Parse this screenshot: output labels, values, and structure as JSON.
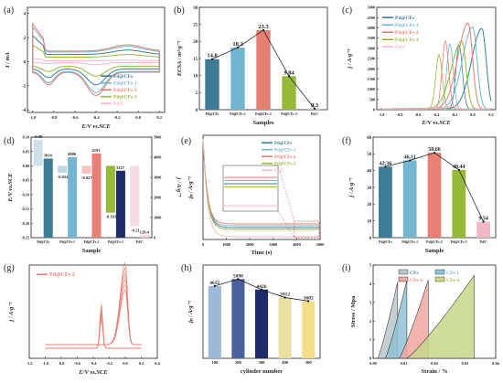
{
  "colors": {
    "pd_cfs": "#3e7c95",
    "pd_cfs1": "#74b6cf",
    "pd_cfs2": "#e67f74",
    "pd_cfs3": "#97b93a",
    "pd_c": "#f3b8c6",
    "navy": "#1f2d6b",
    "axis": "#222222"
  },
  "series_names": [
    "Pd@CFs",
    "Pd@CFs-1",
    "Pd@CFs-2",
    "Pd@CFs-3",
    "Pd/C"
  ],
  "chart_data": [
    {
      "panel": "(a)",
      "type": "line",
      "xlabel": "E/V vs.SCE",
      "ylabel": "I / mA",
      "xlim": [
        -1.05,
        0.25
      ],
      "ylim": [
        -4.2,
        4.5
      ],
      "xticks": [
        "-1.0",
        "-0.8",
        "-0.6",
        "-0.4",
        "-0.2",
        "0.0",
        "0.2"
      ],
      "yticks": [
        "-4",
        "-2",
        "0",
        "2",
        "4"
      ],
      "legend_position": "center-right",
      "series": [
        {
          "name": "Pd@CFs",
          "values": "cyclic voltammogram, amplitude 2.4 mA"
        },
        {
          "name": "Pd@CFs-1",
          "values": "cyclic voltammogram, amplitude 3.2 mA"
        },
        {
          "name": "Pd@CFs-2",
          "values": "cyclic voltammogram, amplitude 3.5 mA"
        },
        {
          "name": "Pd@CFs-3",
          "values": "cyclic voltammogram, amplitude 1.5 mA"
        },
        {
          "name": "Pd/C",
          "values": "cyclic voltammogram, amplitude 0.3 mA"
        }
      ]
    },
    {
      "panel": "(b)",
      "type": "bar",
      "xlabel": "Samples",
      "ylabel": "ECSA / m²·g⁻¹",
      "ylim": [
        0,
        30
      ],
      "yticks": [
        "0",
        "5",
        "10",
        "15",
        "20",
        "25",
        "30"
      ],
      "categories": [
        "Pd@CFs",
        "Pd@CFs-1",
        "Pd@CFs-2",
        "Pd@CFs-3",
        "Pd/C"
      ],
      "values": [
        14.8,
        18.2,
        23.3,
        9.84,
        0.3
      ],
      "labels": [
        "14.8",
        "18.2",
        "23.3",
        "9.84",
        "0.3"
      ],
      "trend_line": true
    },
    {
      "panel": "(c)",
      "type": "line",
      "xlabel": "E/V vs.SCE",
      "ylabel": "j / A·g⁻¹",
      "xlim": [
        -1.05,
        0.25
      ],
      "ylim": [
        0,
        5000
      ],
      "xticks": [
        "-1.0",
        "-0.8",
        "-0.6",
        "-0.4",
        "-0.2",
        "0.0",
        "0.2"
      ],
      "yticks": [
        "0",
        "500",
        "1000",
        "1500",
        "2000",
        "2500",
        "3000",
        "3500",
        "4000",
        "4500",
        "5000"
      ],
      "legend_position": "top-left",
      "series": [
        {
          "name": "Pd@CFs",
          "peak_potential": 0.1,
          "peak_value": 3934
        },
        {
          "name": "Pd@CFs-1",
          "peak_potential": 0.0,
          "peak_value": 4006
        },
        {
          "name": "Pd@CFs-2",
          "peak_potential": -0.05,
          "peak_value": 4191
        },
        {
          "name": "Pd@CFs-3",
          "peak_potential": -0.12,
          "peak_value": 3327
        },
        {
          "name": "Pd/C",
          "peak_potential": -0.21,
          "peak_value": 120.4
        }
      ]
    },
    {
      "panel": "(d)",
      "type": "bar",
      "xlabel": "Sample",
      "ylabel": "E/V vs.SCE",
      "ylabel_right": "j / A·g⁻¹",
      "ylim": [
        -0.25,
        0.1
      ],
      "ylim_right": [
        0,
        5000
      ],
      "categories": [
        "Pd@CFs",
        "Pd@CFs-1",
        "Pd@CFs-2",
        "Pd@CFs-3",
        "Pd/C"
      ],
      "onset_potential": [
        0.09,
        -0.024,
        -0.027,
        -0.163,
        -0.21
      ],
      "onset_labels": [
        "0.09",
        "-0.024",
        "-0.027",
        "-0.163",
        "-0.21"
      ],
      "peak_current": [
        3934,
        4006,
        4191,
        3327,
        120.4
      ],
      "peak_labels": [
        "3934",
        "4006",
        "4191",
        "3327",
        "120.4"
      ]
    },
    {
      "panel": "(e)",
      "type": "line",
      "xlabel": "Time (s)",
      "ylabel": "jₚ / A·g⁻¹",
      "xlim": [
        0,
        5000
      ],
      "xticks": [
        "0",
        "1000",
        "2000",
        "3000",
        "4000",
        "5000"
      ],
      "legend_position": "top-right",
      "inset": true,
      "series": [
        {
          "name": "Pd@CFs"
        },
        {
          "name": "Pd@CFs-1"
        },
        {
          "name": "Pd@CFs-2"
        },
        {
          "name": "Pd@CFs-3"
        },
        {
          "name": "Pd/C"
        }
      ]
    },
    {
      "panel": "(f)",
      "type": "bar",
      "xlabel": "Sample",
      "ylabel": "j / A·g⁻¹",
      "ylim": [
        0,
        60
      ],
      "yticks": [
        "0",
        "10",
        "20",
        "30",
        "40",
        "50",
        "60"
      ],
      "categories": [
        "Pd@CFs",
        "Pd@CFs-1",
        "Pd@CFs-2",
        "Pd@CFs-3",
        "Pd/C"
      ],
      "values": [
        42.36,
        46.11,
        50.66,
        40.44,
        9.54
      ],
      "labels": [
        "42.36",
        "46.11",
        "50.66",
        "40.44",
        "9.54"
      ],
      "trend_line": true
    },
    {
      "panel": "(g)",
      "type": "line",
      "xlabel": "E/V vs.SCE",
      "ylabel": "j / A·g⁻¹",
      "xlim": [
        -1.2,
        0.4
      ],
      "xticks": [
        "-1.2",
        "-1.0",
        "-0.8",
        "-0.6",
        "-0.4",
        "-0.2",
        "0.0",
        "0.2",
        "0.4"
      ],
      "legend_position": "top-left",
      "series": [
        {
          "name": "Pd@CFs-2",
          "note": "multiple overlaid cycles, peak near 0.0 V"
        }
      ]
    },
    {
      "panel": "(h)",
      "type": "bar",
      "xlabel": "cylinder number",
      "ylabel": "jₚ / A·g⁻¹",
      "ylim": [
        0,
        6000
      ],
      "categories": [
        "100",
        "200",
        "300",
        "400",
        "500"
      ],
      "values": [
        4655,
        5098,
        4426,
        3912,
        3682
      ],
      "labels": [
        "4655",
        "5098",
        "4426",
        "3912",
        "3682"
      ],
      "trend_line": true
    },
    {
      "panel": "(i)",
      "type": "area",
      "xlabel": "Strain / %",
      "ylabel": "Stress / Mpa",
      "xlim": [
        0,
        0.04
      ],
      "ylim": [
        0,
        5
      ],
      "xticks": [
        "0.00",
        "0.01",
        "0.02",
        "0.03",
        "0.04"
      ],
      "yticks": [
        "0",
        "1",
        "2",
        "3",
        "4",
        "5"
      ],
      "legend_position": "top",
      "series": [
        {
          "name": "CFs",
          "max_strain": 0.008,
          "max_stress": 4.1
        },
        {
          "name": "CFs-1",
          "max_strain": 0.011,
          "max_stress": 4.2
        },
        {
          "name": "CFs-2",
          "max_strain": 0.018,
          "max_stress": 4.2
        },
        {
          "name": "CFs-3",
          "max_strain": 0.033,
          "max_stress": 4.45
        }
      ]
    }
  ]
}
